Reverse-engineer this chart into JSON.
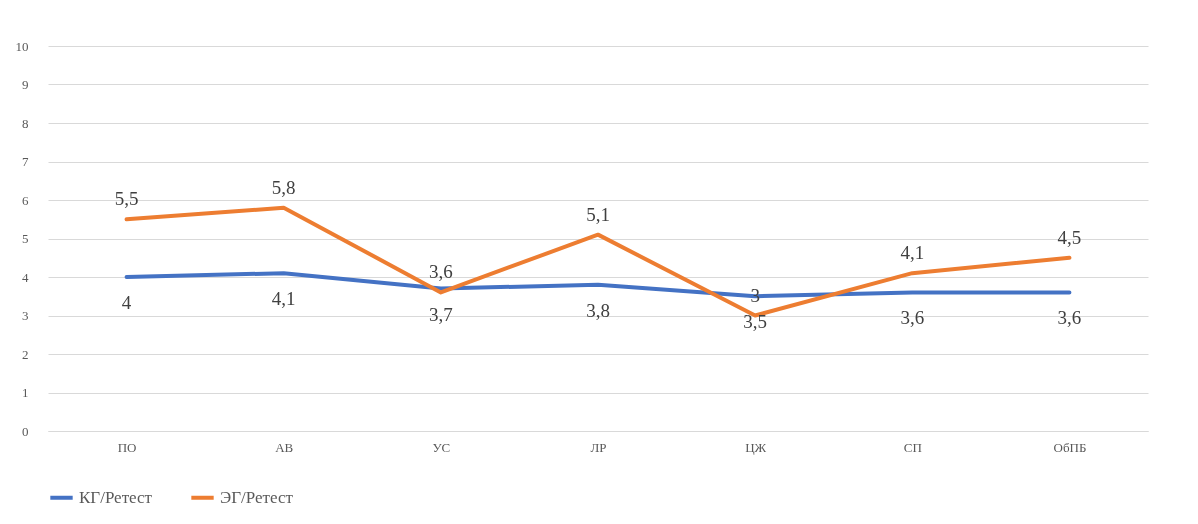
{
  "chart_data": {
    "type": "line",
    "categories": [
      "ПО",
      "АВ",
      "УС",
      "ЛР",
      "ЦЖ",
      "СП",
      "ОбПБ"
    ],
    "series": [
      {
        "name": "КГ/Ретест",
        "color": "#4472c4",
        "values": [
          4,
          4.1,
          3.7,
          3.8,
          3.5,
          3.6,
          3.6
        ],
        "value_labels": [
          "4",
          "4,1",
          "3,7",
          "3,8",
          "3,5",
          "3,6",
          "3,6"
        ]
      },
      {
        "name": "ЭГ/Ретест",
        "color": "#ed7d31",
        "values": [
          5.5,
          5.8,
          3.6,
          5.1,
          3,
          4.1,
          4.5
        ],
        "value_labels": [
          "5,5",
          "5,8",
          "3,6",
          "5,1",
          "3",
          "4,1",
          "4,5"
        ]
      }
    ],
    "ylim": [
      0,
      10
    ],
    "yticks": [
      0,
      1,
      2,
      3,
      4,
      5,
      6,
      7,
      8,
      9,
      10
    ],
    "grid": "y",
    "legend": "bottom",
    "marker": "none",
    "line_style": "solid"
  }
}
